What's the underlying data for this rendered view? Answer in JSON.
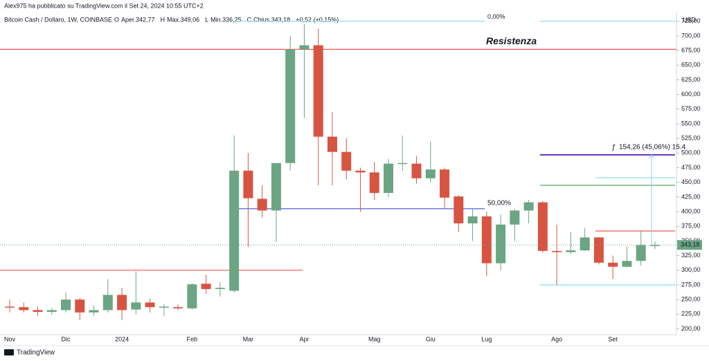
{
  "header": {
    "publisher": "Alex975 ha pubblicato su TradingView.com il Set 24, 2024 10:55 UTC+2",
    "brand": "TradingView"
  },
  "chart_data": {
    "type": "candlestick",
    "title": "Bitcoin Cash / Dollaro, 1W, COINBASE",
    "legend": [
      "O",
      "Aper.342,77",
      "H",
      "Max.349,06",
      "L",
      "Min.336,25",
      "C",
      "Chius.343,18",
      "+0,52 (+0,15%)"
    ],
    "currency": "USD",
    "categories": [
      "Nov",
      null,
      null,
      null,
      "Dic",
      null,
      null,
      null,
      "2024",
      null,
      null,
      null,
      null,
      "Feb",
      null,
      null,
      null,
      "Mar",
      null,
      null,
      null,
      "Apr",
      null,
      null,
      null,
      null,
      "Mag",
      null,
      null,
      null,
      "Giu",
      null,
      null,
      null,
      "Lug",
      null,
      null,
      null,
      null,
      "Ago",
      null,
      null,
      null,
      "Set",
      null,
      null,
      null
    ],
    "open": [
      238,
      237,
      232,
      229,
      232,
      250,
      228,
      232,
      258,
      233,
      245,
      237,
      237,
      235,
      277,
      268,
      265,
      470,
      422,
      402,
      483,
      677,
      684,
      528,
      502,
      470,
      467,
      432,
      482,
      482,
      457,
      472,
      426,
      380,
      392,
      312,
      378,
      402,
      416,
      333,
      331,
      334,
      356,
      313,
      306,
      316,
      342.77
    ],
    "high": [
      250,
      245,
      238,
      236,
      262,
      253,
      240,
      285,
      270,
      298,
      252,
      242,
      242,
      278,
      292,
      280,
      530,
      500,
      445,
      480,
      700,
      720,
      712,
      570,
      525,
      475,
      485,
      490,
      530,
      495,
      520,
      475,
      428,
      405,
      400,
      395,
      405,
      420,
      418,
      378,
      365,
      372,
      357,
      325,
      340,
      368,
      349.06
    ],
    "low": [
      228,
      228,
      222,
      224,
      228,
      215,
      222,
      228,
      215,
      225,
      228,
      222,
      232,
      233,
      260,
      255,
      262,
      340,
      390,
      348,
      470,
      560,
      445,
      445,
      455,
      400,
      420,
      425,
      470,
      448,
      450,
      405,
      365,
      350,
      290,
      300,
      350,
      380,
      330,
      275,
      328,
      333,
      310,
      285,
      305,
      308,
      336.25
    ],
    "close": [
      237,
      232,
      229,
      232,
      250,
      228,
      232,
      258,
      232,
      245,
      237,
      238,
      235,
      276,
      268,
      270,
      470,
      423,
      402,
      483,
      677,
      684,
      528,
      502,
      470,
      467,
      432,
      482,
      483,
      457,
      472,
      424,
      380,
      392,
      312,
      378,
      402,
      416,
      333,
      331,
      334,
      356,
      313,
      306,
      316,
      343,
      343.18
    ],
    "up_color": "#6ba583",
    "down_color": "#d75442",
    "last_price": {
      "value": 343.18,
      "label": "343,18"
    },
    "levels": [
      {
        "value": 677,
        "color": "#f05350",
        "label": "Resistenza"
      },
      {
        "value": 300,
        "color": "#f05350"
      },
      {
        "value": 405,
        "color": "#3f51d8",
        "label": "50,00%"
      },
      {
        "value": 725,
        "color": "#80deea",
        "label": "0,00%"
      },
      {
        "value": 725,
        "color": "#80deea"
      },
      {
        "value": 497,
        "color": "#5e35b1"
      },
      {
        "value": 458,
        "color": "#80deea"
      },
      {
        "value": 445,
        "color": "#43a047"
      },
      {
        "value": 367,
        "color": "#f05350"
      },
      {
        "value": 275,
        "color": "#80deea"
      }
    ],
    "measure": {
      "from": 343,
      "to": 497,
      "label": "154,26 (45,06%) 15.4"
    },
    "ylim": [
      190,
      740
    ],
    "yticks": [
      {
        "value": 200,
        "label": "200,00"
      },
      {
        "value": 225,
        "label": "225,00"
      },
      {
        "value": 250,
        "label": "250,00"
      },
      {
        "value": 275,
        "label": "275,00"
      },
      {
        "value": 300,
        "label": "300,00"
      },
      {
        "value": 325,
        "label": "325,00"
      },
      {
        "value": 350,
        "label": "350,00"
      },
      {
        "value": 375,
        "label": "375,00"
      },
      {
        "value": 400,
        "label": "400,00"
      },
      {
        "value": 425,
        "label": "425,00"
      },
      {
        "value": 450,
        "label": "450,00"
      },
      {
        "value": 475,
        "label": "475,00"
      },
      {
        "value": 500,
        "label": "500,00"
      },
      {
        "value": 525,
        "label": "525,00"
      },
      {
        "value": 550,
        "label": "550,00"
      },
      {
        "value": 575,
        "label": "575,00"
      },
      {
        "value": 600,
        "label": "600,00"
      },
      {
        "value": 625,
        "label": "625,00"
      },
      {
        "value": 650,
        "label": "650,00"
      },
      {
        "value": 675,
        "label": "675,00"
      },
      {
        "value": 700,
        "label": "700,00"
      },
      {
        "value": 725,
        "label": "725,00"
      }
    ],
    "grid": false
  }
}
